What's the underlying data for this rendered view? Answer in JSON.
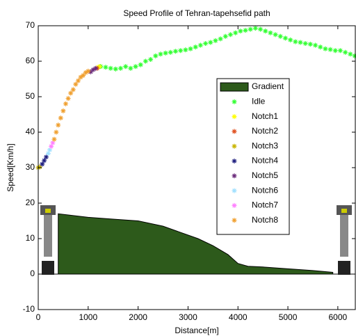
{
  "chart_data": {
    "type": "scatter",
    "title": "Speed Profile of Tehran-tapehsefid path",
    "x_label": "Distance[m]",
    "y_label": "Speed[Km/h]",
    "xlim": [
      0,
      6350
    ],
    "ylim": [
      -10,
      70
    ],
    "xticks": [
      0,
      1000,
      2000,
      3000,
      4000,
      5000,
      6000
    ],
    "yticks": [
      -10,
      0,
      10,
      20,
      30,
      40,
      50,
      60,
      70
    ],
    "legend": "center-right",
    "area": {
      "name": "Gradient",
      "color": "#2d5a1b",
      "x": [
        400,
        1000,
        1500,
        2000,
        2500,
        2800,
        3200,
        3500,
        3800,
        4000,
        4200,
        4500,
        5000,
        5500,
        5900
      ],
      "values": [
        17,
        16,
        15.5,
        15,
        13.5,
        12,
        10,
        8,
        5.5,
        3,
        2.2,
        2,
        1.5,
        1,
        0.5
      ]
    },
    "series": [
      {
        "name": "Idle",
        "color": "#33ff33",
        "x": [
          1250,
          1350,
          1450,
          1550,
          1650,
          1750,
          1850,
          1950,
          2050,
          2150,
          2250,
          2350,
          2450,
          2550,
          2650,
          2750,
          2850,
          2950,
          3050,
          3150,
          3250,
          3350,
          3450,
          3550,
          3650,
          3750,
          3850,
          3950,
          4050,
          4150,
          4250,
          4350,
          4450,
          4550,
          4650,
          4750,
          4850,
          4950,
          5050,
          5150,
          5250,
          5350,
          5450,
          5550,
          5650,
          5750,
          5850,
          5950,
          6050,
          6150,
          6250,
          6340
        ],
        "values": [
          58.5,
          58.3,
          58,
          57.8,
          58,
          58.5,
          58,
          58.5,
          59,
          60,
          60.5,
          61.5,
          62,
          62.3,
          62.5,
          62.8,
          63,
          63.2,
          63.5,
          64,
          64.5,
          65,
          65.3,
          65.8,
          66.3,
          67,
          67.5,
          68,
          68.5,
          68.7,
          69,
          69.3,
          69,
          68.5,
          68,
          67.5,
          67,
          66.5,
          66,
          65.5,
          65.3,
          65,
          64.8,
          64.5,
          64,
          63.5,
          63.3,
          63,
          63,
          62.5,
          62,
          61.5
        ]
      },
      {
        "name": "Notch1",
        "color": "#ffff00",
        "x": [
          1200,
          1230
        ],
        "values": [
          58.3,
          58.5
        ]
      },
      {
        "name": "Notch2",
        "color": "#e05020",
        "x": [
          1180
        ],
        "values": [
          58
        ]
      },
      {
        "name": "Notch3",
        "color": "#c8b400",
        "x": [
          0,
          30
        ],
        "values": [
          30,
          30.2
        ]
      },
      {
        "name": "Notch4",
        "color": "#202080",
        "x": [
          80,
          120,
          160
        ],
        "values": [
          31,
          32,
          33
        ]
      },
      {
        "name": "Notch5",
        "color": "#6a2a7a",
        "x": [
          1050,
          1100,
          1150
        ],
        "values": [
          57,
          57.6,
          58
        ]
      },
      {
        "name": "Notch6",
        "color": "#a0e0ff",
        "x": [
          200,
          230
        ],
        "values": [
          34,
          35
        ]
      },
      {
        "name": "Notch7",
        "color": "#ff80ff",
        "x": [
          260,
          290
        ],
        "values": [
          36,
          37
        ]
      },
      {
        "name": "Notch8",
        "color": "#f0a030",
        "x": [
          320,
          360,
          400,
          450,
          500,
          550,
          600,
          650,
          700,
          750,
          800,
          850,
          900,
          950,
          1000
        ],
        "values": [
          38,
          40,
          42,
          44,
          46,
          48,
          49.5,
          51,
          52,
          53.5,
          54.5,
          55.5,
          56,
          56.8,
          57.2
        ]
      }
    ]
  }
}
